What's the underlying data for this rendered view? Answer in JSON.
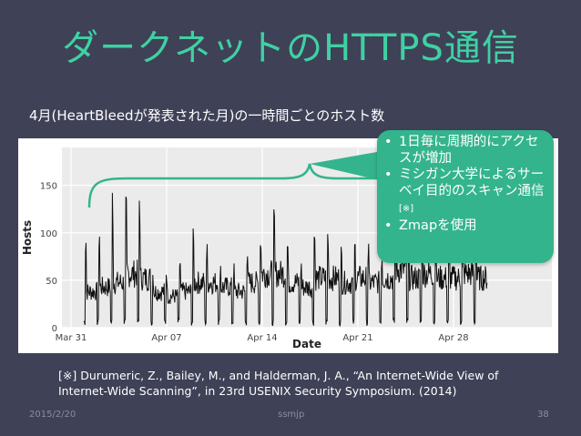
{
  "slide": {
    "title": "ダークネットのHTTPS通信",
    "subtitle": "4月(HeartBleedが発表された月)の一時間ごとのホスト数",
    "callout": {
      "items": [
        {
          "text": "1日毎に周期的にアクセスが増加",
          "note": ""
        },
        {
          "text": "ミシガン大学によるサーベイ目的のスキャン通信",
          "note": "[※]"
        },
        {
          "text": "Zmapを使用",
          "note": ""
        }
      ]
    },
    "citation": "[※] Durumeric, Z., Bailey, M., and Halderman, J. A., “An Internet-Wide View of Internet-Wide Scanning”, in 23rd USENIX Security Symposium. (2014)",
    "footer": {
      "date": "2015/2/20",
      "author": "ssmjp",
      "page": "38"
    }
  },
  "colors": {
    "background": "#3f4157",
    "accent": "#3fd1a2",
    "callout": "#34b48c",
    "line": "#111111"
  },
  "chart_data": {
    "type": "line",
    "xlabel": "Date",
    "ylabel": "Hosts",
    "x_ticks": [
      "Mar 31",
      "Apr 07",
      "Apr 14",
      "Apr 21",
      "Apr 28"
    ],
    "y_ticks": [
      0,
      50,
      100,
      150
    ],
    "ylim": [
      0,
      190
    ],
    "grid": true,
    "daily_peaks": [
      115,
      125,
      165,
      140,
      170,
      70,
      75,
      85,
      105,
      92,
      80,
      70,
      100,
      120,
      125,
      105,
      80,
      120,
      118,
      90,
      100,
      95,
      95,
      140,
      100,
      120,
      110,
      110,
      125,
      130
    ],
    "daily_baseline": [
      40,
      45,
      50,
      60,
      55,
      40,
      35,
      40,
      50,
      50,
      45,
      40,
      50,
      60,
      60,
      50,
      45,
      55,
      55,
      50,
      55,
      50,
      55,
      65,
      55,
      60,
      55,
      55,
      60,
      55
    ]
  }
}
